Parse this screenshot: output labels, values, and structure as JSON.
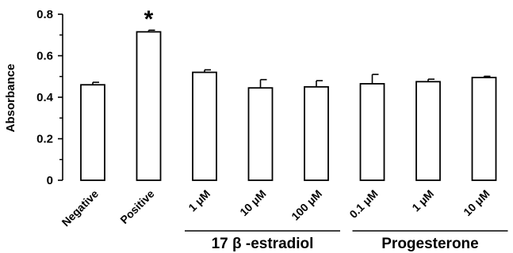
{
  "chart_data": {
    "type": "bar",
    "ylabel": "Absorbance",
    "xlabel": "",
    "ylim": [
      0,
      0.8
    ],
    "yticks": [
      "0",
      "0.2",
      "0.4",
      "0.6",
      "0.8"
    ],
    "grid": false,
    "categories": [
      "Negative",
      "Positive",
      "1 μM",
      "10 μM",
      "100 μM",
      "0.1 μM",
      "1 μM",
      "10 μM"
    ],
    "values": [
      0.46,
      0.715,
      0.52,
      0.445,
      0.45,
      0.465,
      0.475,
      0.495
    ],
    "errors": [
      0.012,
      0.008,
      0.012,
      0.04,
      0.03,
      0.045,
      0.012,
      0.006
    ],
    "groups": [
      {
        "label": "17 β -estradiol",
        "members": [
          2,
          3,
          4
        ]
      },
      {
        "label": "Progesterone",
        "members": [
          5,
          6,
          7
        ]
      }
    ],
    "annotations": [
      {
        "category_index": 1,
        "text": "*"
      }
    ],
    "colors": {
      "bar_fill": "#ffffff",
      "bar_stroke": "#000000",
      "axis": "#000000"
    }
  }
}
